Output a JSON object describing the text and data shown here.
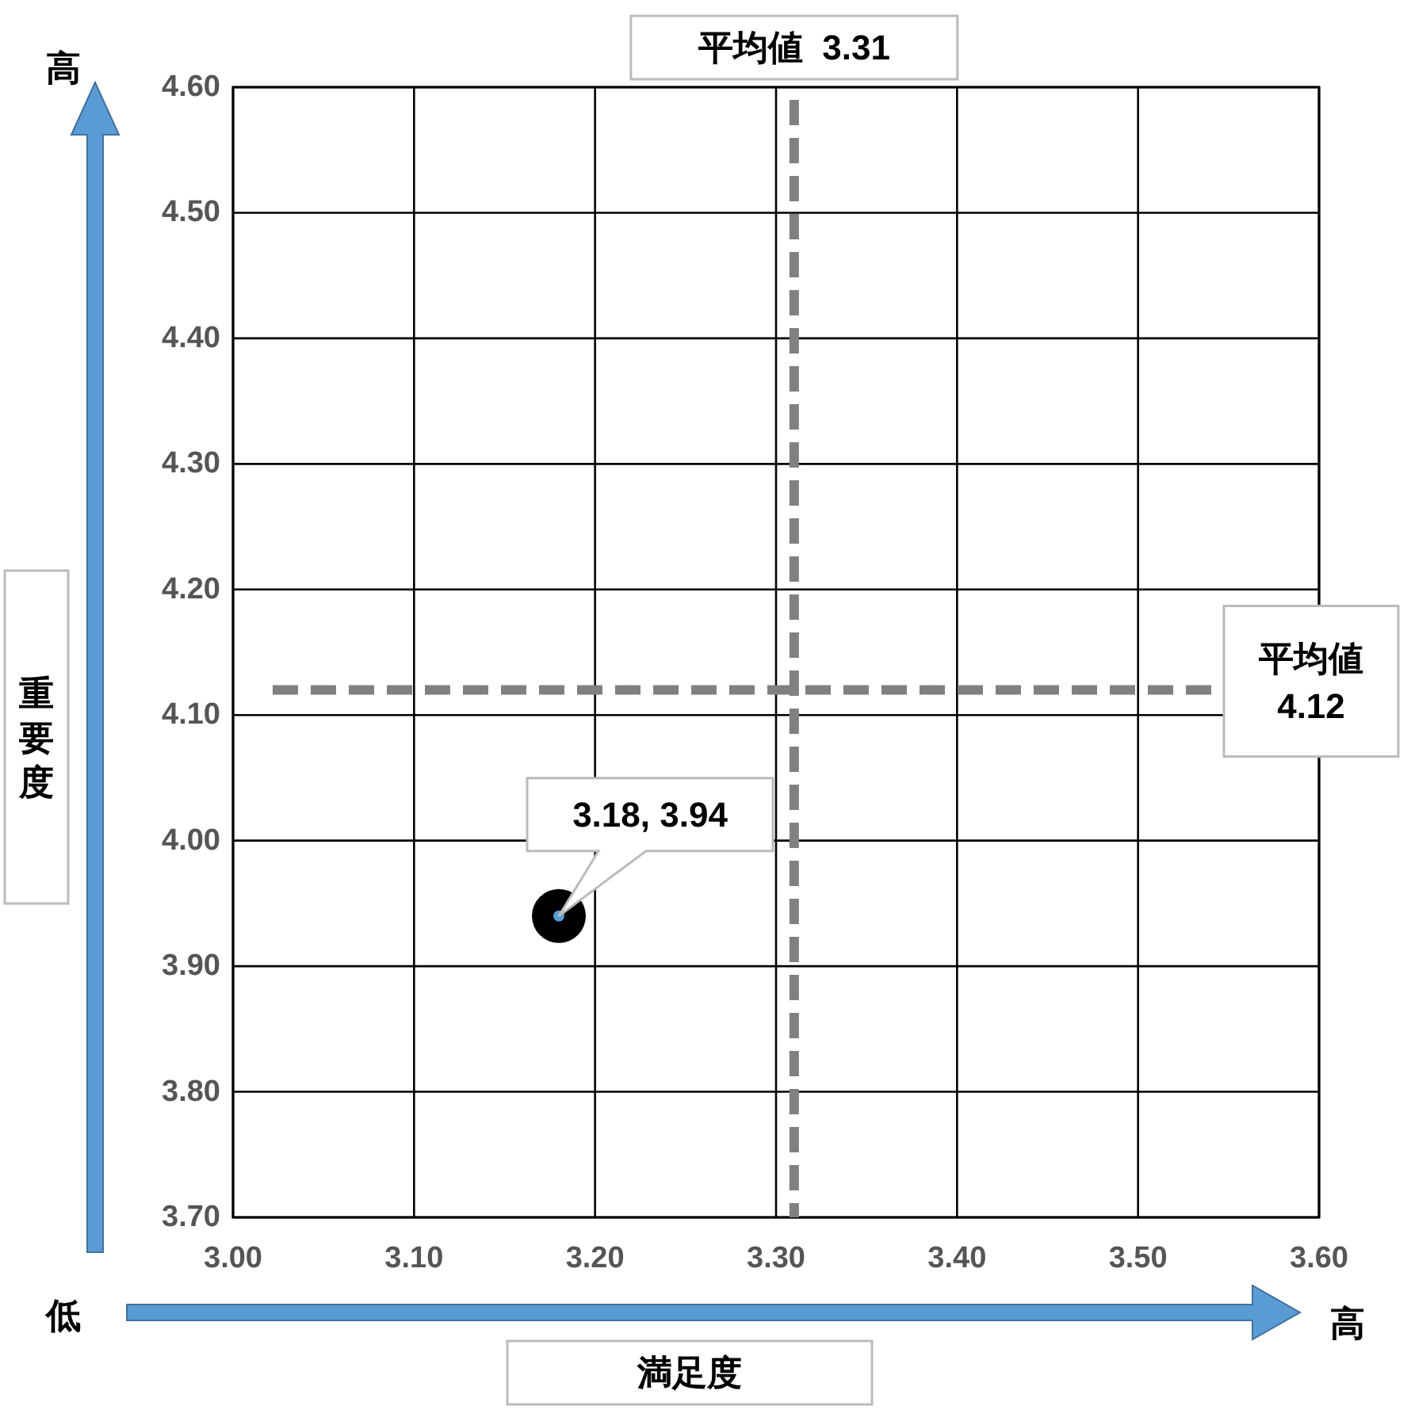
{
  "chart_data": {
    "type": "scatter",
    "xlabel": "満足度",
    "ylabel": "重要度",
    "x": [
      3.18
    ],
    "values": [
      3.94
    ],
    "value_labels": [
      "3.18, 3.94"
    ],
    "color": "#000000",
    "marker": "circle",
    "xlim": [
      3.0,
      3.6
    ],
    "xticks": [
      {
        "value": 3.0,
        "label": "3.00"
      },
      {
        "value": 3.1,
        "label": "3.10"
      },
      {
        "value": 3.2,
        "label": "3.20"
      },
      {
        "value": 3.3,
        "label": "3.30"
      },
      {
        "value": 3.4,
        "label": "3.40"
      },
      {
        "value": 3.5,
        "label": "3.50"
      },
      {
        "value": 3.6,
        "label": "3.60"
      }
    ],
    "ylim": [
      3.7,
      4.6
    ],
    "yticks": [
      {
        "value": 3.7,
        "label": "3.70"
      },
      {
        "value": 3.8,
        "label": "3.80"
      },
      {
        "value": 3.9,
        "label": "3.90"
      },
      {
        "value": 4.0,
        "label": "4.00"
      },
      {
        "value": 4.1,
        "label": "4.10"
      },
      {
        "value": 4.2,
        "label": "4.20"
      },
      {
        "value": 4.3,
        "label": "4.30"
      },
      {
        "value": 4.4,
        "label": "4.40"
      },
      {
        "value": 4.5,
        "label": "4.50"
      },
      {
        "value": 4.6,
        "label": "4.60"
      }
    ],
    "grid": true,
    "ref_lines": [
      {
        "axis": "x",
        "value": 3.31,
        "label": "平均値  3.31",
        "color": "#808080",
        "line_style": "dashed"
      },
      {
        "axis": "y",
        "value": 4.12,
        "label": "平均値 4.12",
        "color": "#808080",
        "line_style": "dashed"
      }
    ],
    "annotations": [
      "高",
      "低",
      "高"
    ]
  }
}
